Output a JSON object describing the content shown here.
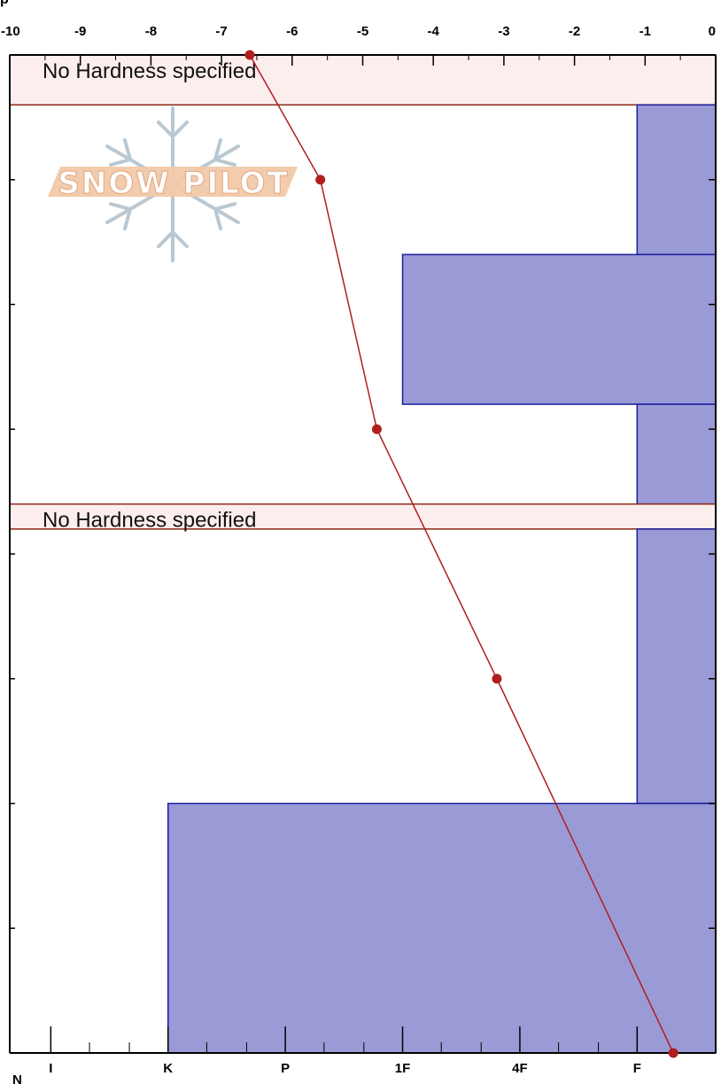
{
  "header": {
    "label": "p"
  },
  "footer": {
    "label": "N"
  },
  "watermark": {
    "text": "SNOW PILOT"
  },
  "colors": {
    "layer_fill": "#9a9ad6",
    "layer_stroke": "#1c1c9e",
    "unspecified_fill": "#fdeeee",
    "unspecified_stroke": "#8b2a14",
    "temp_line": "#b01e1e",
    "axis": "#000000"
  },
  "chart_data": {
    "type": "profile",
    "top_axis": {
      "label": "",
      "range": [
        -10,
        0
      ],
      "ticks": [
        -10,
        -9,
        -8,
        -7,
        -6,
        -5,
        -4,
        -3,
        -2,
        -1,
        0
      ],
      "tick_labels": [
        "-10",
        "-9",
        "-8",
        "-7",
        "-6",
        "-5",
        "-4",
        "-3",
        "-2",
        "-1",
        "0"
      ]
    },
    "bottom_axis": {
      "label": "",
      "hardness_scale": [
        {
          "label": "I",
          "index": 0
        },
        {
          "label": "K",
          "index": 1
        },
        {
          "label": "P",
          "index": 2
        },
        {
          "label": "1F",
          "index": 3
        },
        {
          "label": "4F",
          "index": 4
        },
        {
          "label": "F",
          "index": 5
        }
      ],
      "index_range": [
        -0.35,
        5.67
      ]
    },
    "depth_range": [
      0,
      100
    ],
    "layers": [
      {
        "top": 0,
        "bottom": 5.0,
        "hardness": null,
        "label": "No Hardness specified"
      },
      {
        "top": 5.0,
        "bottom": 20.0,
        "hardness": 5.0
      },
      {
        "top": 20.0,
        "bottom": 35.0,
        "hardness": 3.0
      },
      {
        "top": 35.0,
        "bottom": 45.0,
        "hardness": 5.0
      },
      {
        "top": 45.0,
        "bottom": 47.5,
        "hardness": null,
        "label": "No Hardness specified"
      },
      {
        "top": 47.5,
        "bottom": 75.0,
        "hardness": 5.0
      },
      {
        "top": 75.0,
        "bottom": 100.0,
        "hardness": 1.0
      }
    ],
    "temperature_profile": [
      {
        "depth": 0,
        "temp": -6.6
      },
      {
        "depth": 12.5,
        "temp": -5.6
      },
      {
        "depth": 37.5,
        "temp": -4.8
      },
      {
        "depth": 62.5,
        "temp": -3.1
      },
      {
        "depth": 100,
        "temp": -0.6
      }
    ],
    "grid": false
  }
}
